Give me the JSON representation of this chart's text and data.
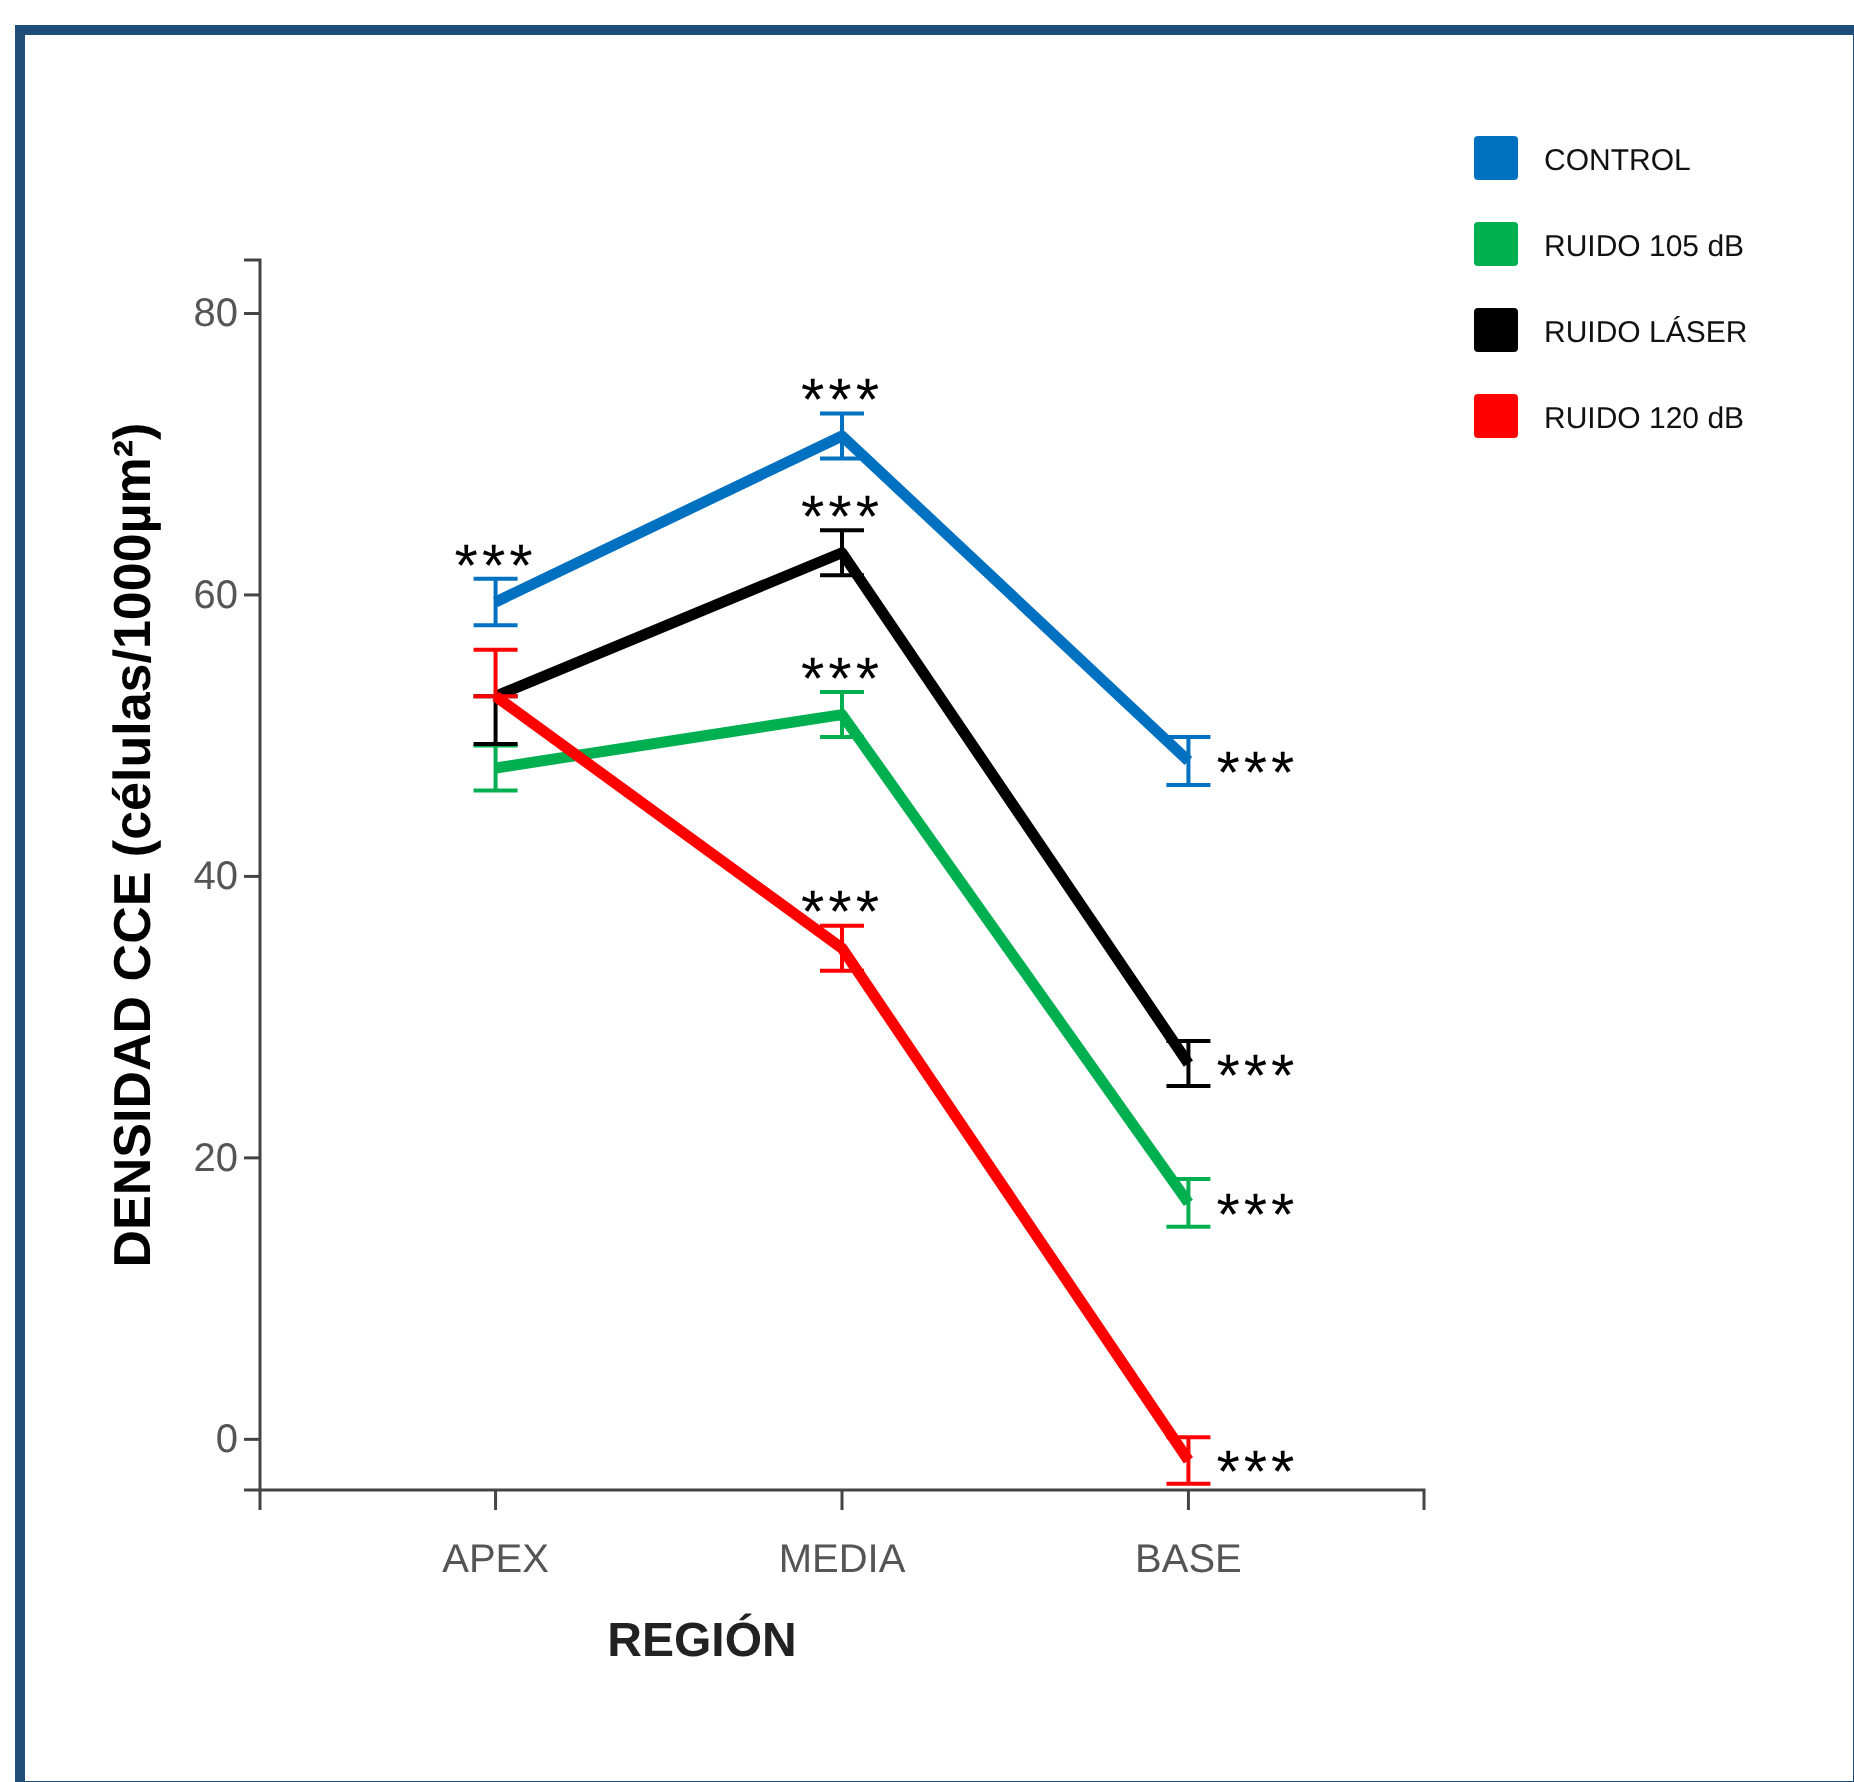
{
  "chart_data": {
    "type": "line",
    "xlabel": "REGIÓN",
    "ylabel": "DENSIDAD  CCE (células/1000µm²)",
    "categories": [
      "APEX",
      "MEDIA",
      "BASE"
    ],
    "series": [
      {
        "name": "CONTROL",
        "color": "#0070c0",
        "values": [
          59.5,
          71.3,
          48.2
        ],
        "errors": [
          1.65,
          1.6,
          1.7
        ]
      },
      {
        "name": "RUIDO 105 dB",
        "color": "#00b050",
        "values": [
          47.7,
          51.5,
          16.8
        ],
        "errors": [
          1.6,
          1.6,
          1.7
        ]
      },
      {
        "name": "RUIDO LÁSER",
        "color": "#000000",
        "values": [
          52.8,
          63,
          26.7
        ],
        "errors": [
          [
            49.4,
            52.8
          ],
          1.6,
          1.6
        ]
      },
      {
        "name": "RUIDO 120 dB",
        "color": "#ff0000",
        "values": [
          52.8,
          34.9,
          -1.5
        ],
        "errors": [
          [
            52.8,
            56.1
          ],
          1.6,
          1.65
        ]
      }
    ],
    "ylim": [
      -3.6,
      83.8
    ],
    "yticks": [
      0,
      20,
      40,
      60,
      80
    ],
    "legend": "top right",
    "marker": "none",
    "line_style": "solid",
    "annotations": [
      {
        "text": "***",
        "x": "APEX",
        "y": 59.5
      },
      {
        "text": "***",
        "x": "MEDIA",
        "y": 71.3
      },
      {
        "text": "***",
        "x": "MEDIA",
        "y": 63
      },
      {
        "text": "***",
        "x": "MEDIA",
        "y": 51.5
      },
      {
        "text": "***",
        "x": "MEDIA",
        "y": 34.9
      },
      {
        "text": "***",
        "x": "BASE",
        "y": 48.2
      },
      {
        "text": "***",
        "x": "BASE",
        "y": 26.7
      },
      {
        "text": "***",
        "x": "BASE",
        "y": 16.8
      },
      {
        "text": "***",
        "x": "BASE",
        "y": -1.5
      }
    ]
  }
}
